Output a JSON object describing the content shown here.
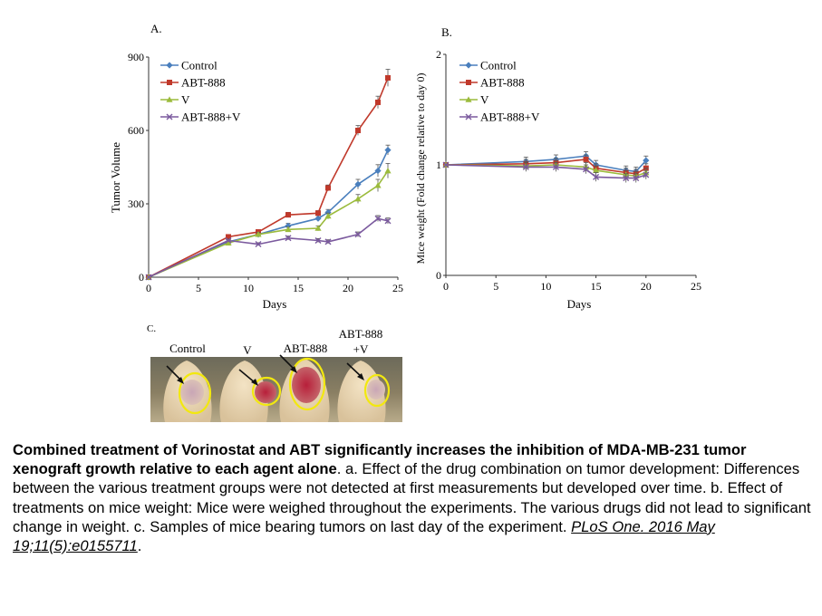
{
  "chart_data": [
    {
      "panel": "A.",
      "type": "line",
      "xlabel": "Days",
      "ylabel": "Tumor Volume",
      "xlim": [
        0,
        25
      ],
      "ylim": [
        0,
        900
      ],
      "x_ticks": [
        "0",
        "5",
        "10",
        "15",
        "20",
        "25"
      ],
      "y_ticks": [
        "0",
        "300",
        "600",
        "900"
      ],
      "legend": "top-left",
      "grid": false,
      "series": [
        {
          "name": "Control",
          "color": "#4a7fbd",
          "marker": "diamond",
          "x": [
            0,
            8,
            11,
            14,
            17,
            18,
            21,
            23,
            24
          ],
          "y": [
            0,
            145,
            175,
            210,
            240,
            265,
            380,
            435,
            520
          ],
          "err": [
            0,
            8,
            8,
            10,
            12,
            12,
            20,
            25,
            20
          ]
        },
        {
          "name": "ABT-888",
          "color": "#c0392b",
          "marker": "square",
          "x": [
            0,
            8,
            11,
            14,
            17,
            18,
            21,
            23,
            24
          ],
          "y": [
            0,
            165,
            185,
            255,
            262,
            365,
            600,
            715,
            815
          ],
          "err": [
            0,
            8,
            8,
            10,
            10,
            12,
            20,
            25,
            35
          ]
        },
        {
          "name": "V",
          "color": "#9bbb3c",
          "marker": "triangle",
          "x": [
            0,
            8,
            11,
            14,
            17,
            18,
            21,
            23,
            24
          ],
          "y": [
            0,
            140,
            175,
            195,
            200,
            250,
            320,
            375,
            435
          ],
          "err": [
            0,
            8,
            8,
            10,
            10,
            12,
            18,
            25,
            30
          ]
        },
        {
          "name": "ABT-888+V",
          "color": "#7b5a9e",
          "marker": "x",
          "x": [
            0,
            8,
            11,
            14,
            17,
            18,
            21,
            23,
            24
          ],
          "y": [
            0,
            150,
            135,
            160,
            150,
            145,
            175,
            240,
            230
          ],
          "err": [
            0,
            6,
            6,
            8,
            8,
            8,
            10,
            12,
            12
          ]
        }
      ]
    },
    {
      "panel": "B.",
      "type": "line",
      "xlabel": "Days",
      "ylabel": "Mice weight (Fold change relative to day 0)",
      "xlim": [
        0,
        25
      ],
      "ylim": [
        0,
        2
      ],
      "x_ticks": [
        "0",
        "5",
        "10",
        "15",
        "20",
        "25"
      ],
      "y_ticks": [
        "0",
        "1",
        "2"
      ],
      "legend": "top-left",
      "grid": false,
      "series": [
        {
          "name": "Control",
          "color": "#4a7fbd",
          "marker": "diamond",
          "x": [
            0,
            8,
            11,
            14,
            15,
            18,
            19,
            20
          ],
          "y": [
            1.0,
            1.03,
            1.05,
            1.08,
            1.0,
            0.95,
            0.94,
            1.04
          ],
          "err": [
            0,
            0.04,
            0.04,
            0.04,
            0.04,
            0.04,
            0.04,
            0.04
          ]
        },
        {
          "name": "ABT-888",
          "color": "#c0392b",
          "marker": "square",
          "x": [
            0,
            8,
            11,
            14,
            15,
            18,
            19,
            20
          ],
          "y": [
            1.0,
            1.01,
            1.02,
            1.05,
            0.97,
            0.93,
            0.92,
            0.97
          ],
          "err": [
            0,
            0.04,
            0.04,
            0.04,
            0.04,
            0.04,
            0.04,
            0.04
          ]
        },
        {
          "name": "V",
          "color": "#9bbb3c",
          "marker": "triangle",
          "x": [
            0,
            8,
            11,
            14,
            15,
            18,
            19,
            20
          ],
          "y": [
            1.0,
            0.99,
            1.0,
            0.98,
            0.95,
            0.91,
            0.9,
            0.93
          ],
          "err": [
            0,
            0.04,
            0.04,
            0.04,
            0.04,
            0.04,
            0.04,
            0.04
          ]
        },
        {
          "name": "ABT-888+V",
          "color": "#7b5a9e",
          "marker": "x",
          "x": [
            0,
            8,
            11,
            14,
            15,
            18,
            19,
            20
          ],
          "y": [
            1.0,
            0.98,
            0.98,
            0.96,
            0.89,
            0.88,
            0.88,
            0.91
          ],
          "err": [
            0,
            0.04,
            0.04,
            0.04,
            0.04,
            0.04,
            0.04,
            0.04
          ]
        }
      ]
    }
  ],
  "panel_c": {
    "label": "C.",
    "mice": [
      {
        "label": "Control"
      },
      {
        "label": "V"
      },
      {
        "label": "ABT-888"
      },
      {
        "label_line1": "ABT-888",
        "label_line2": "+V"
      }
    ]
  },
  "caption": {
    "bold": "Combined treatment of Vorinostat and ABT significantly increases the inhibition of MDA-MB-231 tumor xenograft growth relative to each agent alone",
    "text": ". a. Effect of the drug combination on tumor development: Differences between the various treatment groups were not detected at first measurements but developed over time. b. Effect of treatments on mice weight: Mice were weighed throughout the experiments. The various drugs did not lead to significant change in weight. c. Samples of mice bearing tumors on last day of the experiment. ",
    "citation": "PLoS One. 2016 May 19;11(5):e0155711",
    "end": "."
  }
}
